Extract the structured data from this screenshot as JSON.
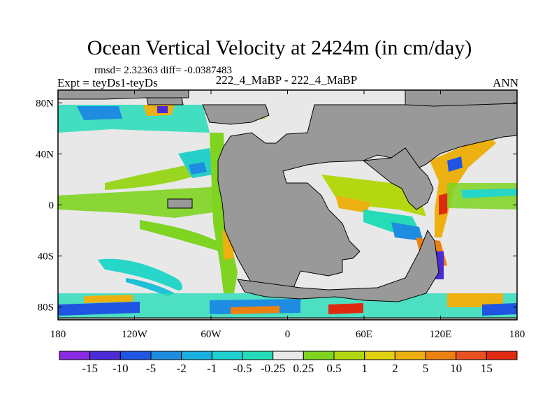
{
  "title": "Ocean Vertical Velocity at 2424m (in cm/day)",
  "stats_line": "rmsd= 2.32363 diff= -0.0387483",
  "expt_line": "Expt = teyDs1-teyDs",
  "center_line": "222_4_MaBP - 222_4_MaBP",
  "season": "ANN",
  "map": {
    "x_tick_labels": [
      "180",
      "120W",
      "60W",
      "0",
      "60E",
      "120E",
      "180"
    ],
    "x_tick_values": [
      -180,
      -120,
      -60,
      0,
      60,
      120,
      180
    ],
    "y_tick_labels": [
      "80N",
      "40N",
      "0",
      "40S",
      "80S"
    ],
    "y_tick_values": [
      80,
      40,
      0,
      -40,
      -80
    ],
    "lon_range": [
      -180,
      180
    ],
    "lat_range": [
      -90,
      90
    ]
  },
  "colorbar": {
    "labels": [
      "-15",
      "-10",
      "-5",
      "-2",
      "-1",
      "-0.5",
      "-0.25",
      "0.25",
      "0.5",
      "1",
      "2",
      "5",
      "10",
      "15"
    ],
    "colors": [
      "#8a2be2",
      "#4b2bd4",
      "#1f55e0",
      "#1e8ce0",
      "#19b0e0",
      "#1ed0d0",
      "#26dcb8",
      "#e8e8e8",
      "#7ed420",
      "#b4d810",
      "#e0d010",
      "#ecb010",
      "#ec8010",
      "#e85020",
      "#e02a10"
    ]
  },
  "colors": {
    "land": "#999999",
    "neutral_ocean": "#e8e8e8",
    "coast_line": "#000000"
  }
}
